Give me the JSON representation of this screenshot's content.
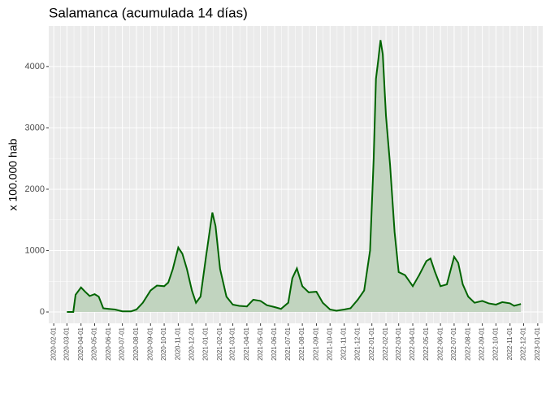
{
  "chart_data": {
    "type": "line",
    "title": "Salamanca (acumulada 14 días)",
    "ylabel": "x 100.000 hab",
    "x": [
      "2020-03-01",
      "2020-03-15",
      "2020-03-20",
      "2020-04-01",
      "2020-04-10",
      "2020-04-20",
      "2020-05-01",
      "2020-05-10",
      "2020-05-20",
      "2020-06-01",
      "2020-06-15",
      "2020-07-01",
      "2020-07-20",
      "2020-08-01",
      "2020-08-15",
      "2020-09-01",
      "2020-09-15",
      "2020-10-01",
      "2020-10-10",
      "2020-10-20",
      "2020-11-01",
      "2020-11-10",
      "2020-11-20",
      "2020-12-01",
      "2020-12-10",
      "2020-12-20",
      "2021-01-01",
      "2021-01-15",
      "2021-01-22",
      "2021-02-01",
      "2021-02-15",
      "2021-03-01",
      "2021-03-15",
      "2021-04-01",
      "2021-04-15",
      "2021-05-01",
      "2021-05-15",
      "2021-06-01",
      "2021-06-15",
      "2021-07-01",
      "2021-07-10",
      "2021-07-20",
      "2021-08-01",
      "2021-08-15",
      "2021-09-01",
      "2021-09-15",
      "2021-10-01",
      "2021-10-15",
      "2021-11-01",
      "2021-11-15",
      "2021-12-01",
      "2021-12-15",
      "2021-12-28",
      "2022-01-05",
      "2022-01-10",
      "2022-01-15",
      "2022-01-20",
      "2022-01-25",
      "2022-02-01",
      "2022-02-10",
      "2022-02-20",
      "2022-03-01",
      "2022-03-15",
      "2022-04-01",
      "2022-04-15",
      "2022-05-01",
      "2022-05-10",
      "2022-05-20",
      "2022-06-01",
      "2022-06-15",
      "2022-07-01",
      "2022-07-10",
      "2022-07-20",
      "2022-08-01",
      "2022-08-15",
      "2022-09-01",
      "2022-09-15",
      "2022-10-01",
      "2022-10-15",
      "2022-11-01",
      "2022-11-10",
      "2022-11-25"
    ],
    "series": [
      {
        "color": "#006400",
        "fill": "#c1d4bf",
        "values": [
          0,
          0,
          280,
          400,
          330,
          260,
          290,
          250,
          60,
          50,
          40,
          10,
          10,
          40,
          150,
          350,
          430,
          420,
          480,
          700,
          1050,
          950,
          700,
          350,
          150,
          250,
          900,
          1620,
          1400,
          700,
          250,
          120,
          100,
          90,
          200,
          180,
          110,
          80,
          50,
          150,
          550,
          710,
          420,
          320,
          330,
          150,
          40,
          20,
          40,
          60,
          200,
          350,
          1000,
          2500,
          3800,
          4100,
          4430,
          4200,
          3200,
          2400,
          1300,
          650,
          600,
          420,
          600,
          830,
          870,
          650,
          420,
          450,
          900,
          800,
          450,
          250,
          150,
          180,
          140,
          120,
          160,
          140,
          100,
          130
        ]
      }
    ],
    "xlim": [
      "2020-01-21",
      "2023-01-12"
    ],
    "xticks": [
      "2020-02-01",
      "2020-03-01",
      "2020-04-01",
      "2020-05-01",
      "2020-06-01",
      "2020-07-01",
      "2020-08-01",
      "2020-09-01",
      "2020-10-01",
      "2020-11-01",
      "2020-12-01",
      "2021-01-01",
      "2021-02-01",
      "2021-03-01",
      "2021-04-01",
      "2021-05-01",
      "2021-06-01",
      "2021-07-01",
      "2021-08-01",
      "2021-09-01",
      "2021-10-01",
      "2021-11-01",
      "2021-12-01",
      "2022-01-01",
      "2022-02-01",
      "2022-03-01",
      "2022-04-01",
      "2022-05-01",
      "2022-06-01",
      "2022-07-01",
      "2022-08-01",
      "2022-09-01",
      "2022-10-01",
      "2022-11-01",
      "2022-12-01",
      "2023-01-01"
    ],
    "ylim": [
      -185,
      4660
    ],
    "yticks": [
      0,
      1000,
      2000,
      3000,
      4000
    ],
    "grid": true
  }
}
